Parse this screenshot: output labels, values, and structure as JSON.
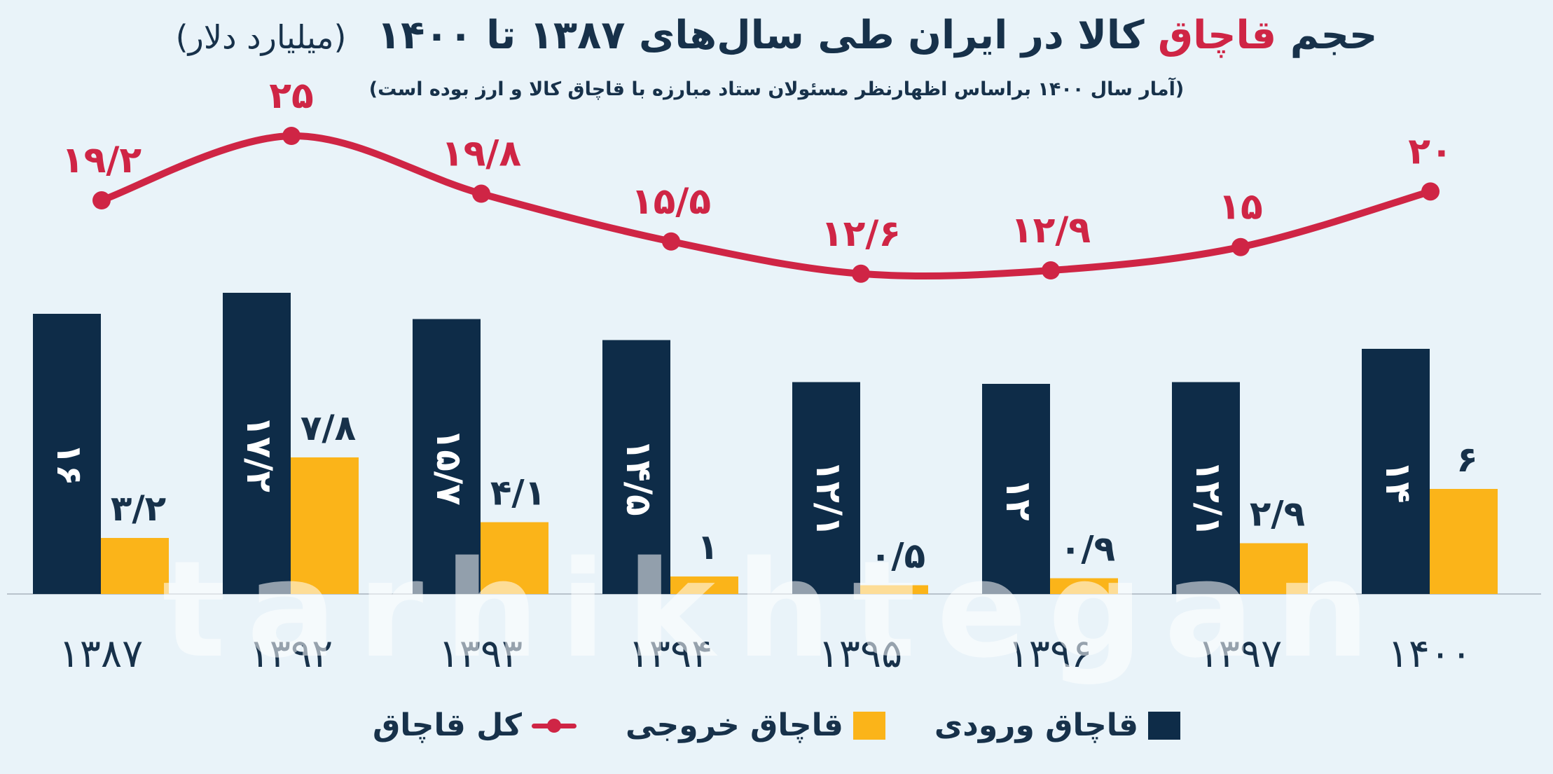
{
  "title": {
    "prefix": "حجم",
    "highlight": "قاچاق",
    "rest": "کالا در ایران طی سال‌های ۱۳۸۷ تا ۱۴۰۰",
    "unit": "(میلیارد دلار)"
  },
  "subtitle": "(آمار سال ۱۴۰۰ براساس اظهارنظر مسئولان ستاد مبارزه با قاچاق کالا و ارز بوده است)",
  "watermark": "tarhikhtegan",
  "colors": {
    "inbound": "#0e2c48",
    "outbound": "#fbb419",
    "total": "#cf2545",
    "text": "#17314a",
    "background": "#e9f3f9"
  },
  "legend": {
    "inbound": "قاچاق ورودی",
    "outbound": "قاچاق خروجی",
    "total": "کل قاچاق"
  },
  "chart_data": {
    "type": "bar",
    "categories": [
      "۱۳۸۷",
      "۱۳۹۲",
      "۱۳۹۳",
      "۱۳۹۴",
      "۱۳۹۵",
      "۱۳۹۶",
      "۱۳۹۷",
      "۱۴۰۰"
    ],
    "series": [
      {
        "name": "قاچاق ورودی",
        "type": "bar",
        "values": [
          16,
          17.2,
          15.7,
          14.5,
          12.1,
          12,
          12.1,
          14
        ],
        "labels": [
          "۱۶",
          "۱۷/۲",
          "۱۵/۷",
          "۱۴/۵",
          "۱۲/۱",
          "۱۲",
          "۱۲/۱",
          "۱۴"
        ]
      },
      {
        "name": "قاچاق خروجی",
        "type": "bar",
        "values": [
          3.2,
          7.8,
          4.1,
          1,
          0.5,
          0.9,
          2.9,
          6
        ],
        "labels": [
          "۳/۲",
          "۷/۸",
          "۴/۱",
          "۱",
          "۰/۵",
          "۰/۹",
          "۲/۹",
          "۶"
        ]
      },
      {
        "name": "کل قاچاق",
        "type": "line",
        "values": [
          19.2,
          25,
          19.8,
          15.5,
          12.6,
          12.9,
          15,
          20
        ],
        "labels": [
          "۱۹/۲",
          "۲۵",
          "۱۹/۸",
          "۱۵/۵",
          "۱۲/۶",
          "۱۲/۹",
          "۱۵",
          "۲۰"
        ]
      }
    ],
    "ylim": [
      0,
      25
    ],
    "grid": false,
    "legend_position": "bottom"
  }
}
